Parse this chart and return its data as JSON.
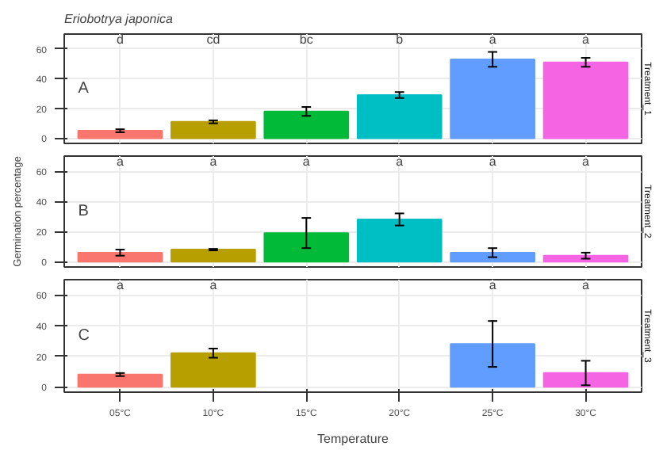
{
  "chart_data": [
    {
      "type": "bar",
      "title": "Eriobotrya japonica",
      "ylabel": null,
      "values": [
        5,
        11,
        18,
        29,
        53,
        51
      ],
      "errors": [
        1,
        1,
        3,
        2,
        5,
        3
      ],
      "colors": [
        "#f8766d",
        "#b79f00",
        "#00ba38",
        "#00bfc4",
        "#619cff",
        "#f564e3"
      ],
      "ylim": [
        -3.5,
        70
      ],
      "yticks": [
        0,
        20,
        40,
        60
      ],
      "grid": true,
      "tick_labels": "y",
      "annotations": [
        "A",
        "Treatment_1",
        "d",
        "cd",
        "bc",
        "b",
        "a",
        "a"
      ]
    },
    {
      "type": "bar",
      "ylabel": "Germination percentage",
      "values": [
        6,
        8,
        19,
        28,
        6,
        4
      ],
      "errors": [
        2,
        0.5,
        10,
        4,
        3,
        2
      ],
      "colors": [
        "#f8766d",
        "#b79f00",
        "#00ba38",
        "#00bfc4",
        "#619cff",
        "#f564e3"
      ],
      "ylim": [
        -3.5,
        70
      ],
      "yticks": [
        0,
        20,
        40,
        60
      ],
      "grid": true,
      "tick_labels": "y",
      "annotations": [
        "B",
        "Treatment_2",
        "a",
        "a",
        "a",
        "a",
        "a",
        "a"
      ]
    },
    {
      "type": "bar",
      "xlabel": "Temperature",
      "categories": [
        "05°C",
        "10°C",
        "15°C",
        "20°C",
        "25°C",
        "30°C"
      ],
      "values": [
        8,
        22,
        null,
        null,
        28,
        9
      ],
      "errors": [
        1,
        3,
        null,
        null,
        15,
        8
      ],
      "colors": [
        "#f8766d",
        "#b79f00",
        "#00ba38",
        "#00bfc4",
        "#619cff",
        "#f564e3"
      ],
      "ylim": [
        -3.5,
        70
      ],
      "yticks": [
        0,
        20,
        40,
        60
      ],
      "grid": true,
      "annotations": [
        "C",
        "Treatment_3",
        "a",
        "a",
        "a",
        "a"
      ]
    }
  ]
}
